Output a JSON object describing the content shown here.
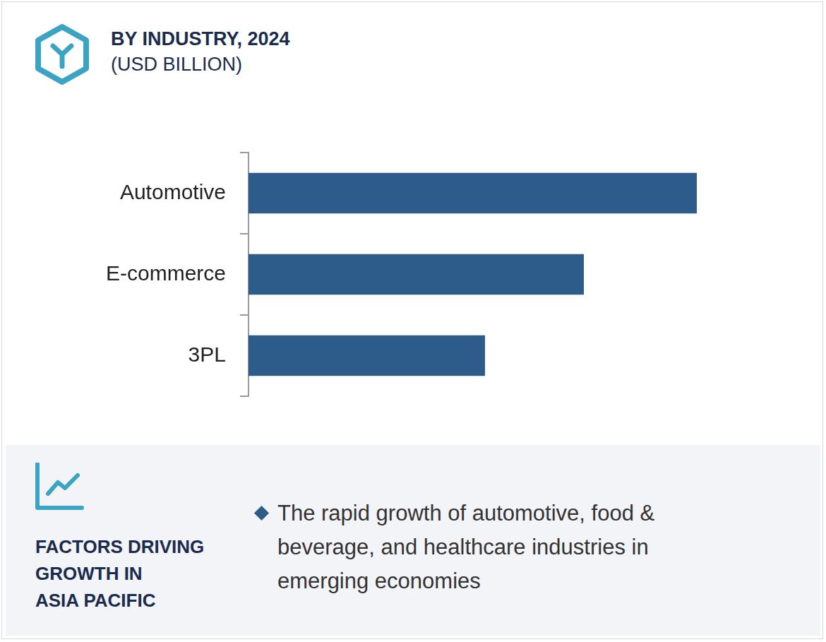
{
  "chart_data": {
    "type": "bar",
    "orientation": "horizontal",
    "title": "BY INDUSTRY, 2024",
    "subtitle": "(USD BILLION)",
    "categories": [
      "Automotive",
      "E-commerce",
      "3PL"
    ],
    "values": [
      12.7,
      9.5,
      6.7
    ],
    "color": "#2d5b8a",
    "xlim": [
      0,
      14
    ],
    "grid": false,
    "tick_labels": "y"
  },
  "factors": {
    "heading": [
      "FACTORS DRIVING",
      "GROWTH IN",
      "ASIA PACIFIC"
    ],
    "bullets": [
      "The rapid growth of automotive, food & beverage, and healthcare industries in emerging economies"
    ]
  }
}
